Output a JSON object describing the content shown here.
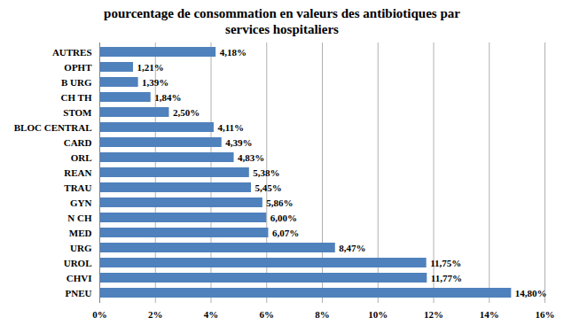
{
  "chart_data": {
    "type": "bar",
    "orientation": "horizontal",
    "title": "pourcentage de consommation en valeurs des antibiotiques par services hospitaliers",
    "categories": [
      "AUTRES",
      "OPHT",
      "B URG",
      "CH TH",
      "STOM",
      "BLOC CENTRAL",
      "CARD",
      "ORL",
      "REAN",
      "TRAU",
      "GYN",
      "N CH",
      "MED",
      "URG",
      "UROL",
      "CHVI",
      "PNEU"
    ],
    "values": [
      4.18,
      1.21,
      1.39,
      1.84,
      2.5,
      4.11,
      4.39,
      4.83,
      5.38,
      5.45,
      5.86,
      6.0,
      6.07,
      8.47,
      11.75,
      11.77,
      14.8
    ],
    "value_labels": [
      "4,18%",
      "1,21%",
      "1,39%",
      "1,84%",
      "2,50%",
      "4,11%",
      "4,39%",
      "4,83%",
      "5,38%",
      "5,45%",
      "5,86%",
      "6,00%",
      "6,07%",
      "8,47%",
      "11,75%",
      "11,77%",
      "14,80%"
    ],
    "data_labels": true,
    "color": "#4f81bd",
    "xlim": [
      0,
      16
    ],
    "xticks": [
      {
        "value": 0,
        "label": "0%"
      },
      {
        "value": 2,
        "label": "2%"
      },
      {
        "value": 4,
        "label": "4%"
      },
      {
        "value": 6,
        "label": "6%"
      },
      {
        "value": 8,
        "label": "8%"
      },
      {
        "value": 10,
        "label": "10%"
      },
      {
        "value": 12,
        "label": "12%"
      },
      {
        "value": 14,
        "label": "14%"
      },
      {
        "value": 16,
        "label": "16%"
      }
    ],
    "grid": true
  }
}
